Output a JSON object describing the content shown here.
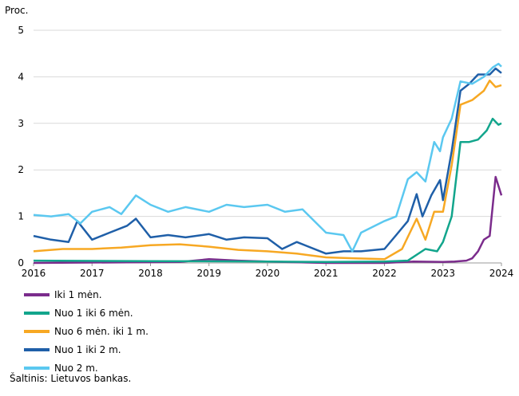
{
  "chart_data": {
    "type": "line",
    "ylabel": "Proc.",
    "ylim": [
      0,
      5
    ],
    "yticks": [
      "0",
      "1",
      "2",
      "3",
      "4",
      "5"
    ],
    "xlim": [
      2016,
      2024
    ],
    "xticks": [
      "2016",
      "2017",
      "2018",
      "2019",
      "2020",
      "2021",
      "2022",
      "2023",
      "2024"
    ],
    "grid": "horizontal",
    "legend_position": "bottom-left",
    "source": "Šaltinis: Lietuvos bankas.",
    "series": [
      {
        "name": "Iki 1 mėn.",
        "color": "#7b2c8c",
        "x": [
          2016,
          2018.5,
          2019.0,
          2019.5,
          2020.0,
          2021,
          2022,
          2022.5,
          2023.0,
          2023.2,
          2023.4,
          2023.5,
          2023.6,
          2023.7,
          2023.8,
          2023.9,
          2024.0
        ],
        "y": [
          0,
          0.02,
          0.08,
          0.05,
          0.03,
          0.0,
          0.0,
          0.03,
          0.02,
          0.03,
          0.05,
          0.1,
          0.25,
          0.5,
          0.58,
          1.85,
          1.45
        ]
      },
      {
        "name": "Nuo 1 iki 6 mėn.",
        "color": "#12a58c",
        "x": [
          2016,
          2018,
          2020,
          2021,
          2022.0,
          2022.4,
          2022.7,
          2022.9,
          2023.0,
          2023.15,
          2023.3,
          2023.45,
          2023.6,
          2023.75,
          2023.85,
          2023.95,
          2024.0
        ],
        "y": [
          0.05,
          0.04,
          0.03,
          0.02,
          0.03,
          0.05,
          0.3,
          0.25,
          0.45,
          1.0,
          2.6,
          2.6,
          2.65,
          2.85,
          3.1,
          2.97,
          3.0
        ]
      },
      {
        "name": "Nuo 6 mėn. iki 1 m.",
        "color": "#f7a823",
        "x": [
          2016,
          2016.5,
          2017,
          2017.5,
          2018,
          2018.5,
          2019,
          2019.5,
          2020,
          2020.5,
          2021,
          2021.5,
          2022,
          2022.3,
          2022.55,
          2022.7,
          2022.85,
          2023.0,
          2023.15,
          2023.3,
          2023.5,
          2023.7,
          2023.8,
          2023.9,
          2024.0
        ],
        "y": [
          0.25,
          0.3,
          0.3,
          0.33,
          0.38,
          0.4,
          0.35,
          0.28,
          0.25,
          0.2,
          0.12,
          0.1,
          0.08,
          0.3,
          0.95,
          0.5,
          1.1,
          1.1,
          2.1,
          3.4,
          3.5,
          3.7,
          3.92,
          3.78,
          3.82
        ]
      },
      {
        "name": "Nuo 1 iki 2 m.",
        "color": "#1f5fa8",
        "x": [
          2016,
          2016.3,
          2016.6,
          2016.75,
          2017,
          2017.3,
          2017.6,
          2017.75,
          2018,
          2018.3,
          2018.6,
          2019,
          2019.3,
          2019.6,
          2020,
          2020.25,
          2020.5,
          2021,
          2021.3,
          2021.6,
          2022,
          2022.2,
          2022.4,
          2022.55,
          2022.65,
          2022.8,
          2022.95,
          2023.0,
          2023.15,
          2023.3,
          2023.45,
          2023.6,
          2023.8,
          2023.9,
          2024.0
        ],
        "y": [
          0.58,
          0.5,
          0.45,
          0.9,
          0.5,
          0.65,
          0.8,
          0.95,
          0.55,
          0.6,
          0.55,
          0.62,
          0.5,
          0.55,
          0.53,
          0.3,
          0.45,
          0.2,
          0.25,
          0.25,
          0.3,
          0.6,
          0.9,
          1.48,
          1.0,
          1.45,
          1.78,
          1.35,
          2.4,
          3.7,
          3.85,
          4.05,
          4.05,
          4.18,
          4.08
        ]
      },
      {
        "name": "Nuo 2 m.",
        "color": "#5bc8f0",
        "x": [
          2016,
          2016.3,
          2016.6,
          2016.8,
          2017,
          2017.3,
          2017.5,
          2017.75,
          2018,
          2018.3,
          2018.6,
          2019,
          2019.3,
          2019.6,
          2020,
          2020.3,
          2020.6,
          2021,
          2021.3,
          2021.45,
          2021.6,
          2022,
          2022.2,
          2022.4,
          2022.55,
          2022.7,
          2022.85,
          2022.95,
          2023.0,
          2023.15,
          2023.3,
          2023.5,
          2023.7,
          2023.85,
          2023.95,
          2024.0
        ],
        "y": [
          1.03,
          1.0,
          1.05,
          0.85,
          1.1,
          1.2,
          1.05,
          1.45,
          1.25,
          1.1,
          1.2,
          1.1,
          1.25,
          1.2,
          1.25,
          1.1,
          1.15,
          0.65,
          0.6,
          0.25,
          0.65,
          0.9,
          1.0,
          1.8,
          1.95,
          1.75,
          2.6,
          2.4,
          2.7,
          3.1,
          3.9,
          3.85,
          4.0,
          4.2,
          4.28,
          4.22
        ]
      }
    ]
  }
}
